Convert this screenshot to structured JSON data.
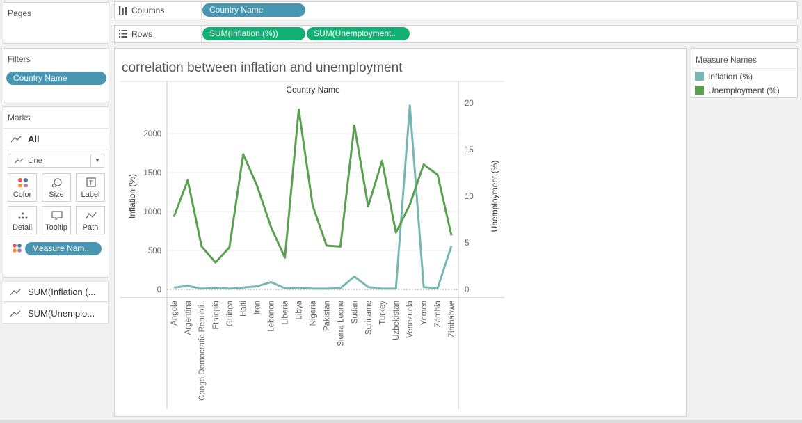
{
  "pages_shelf": {
    "title": "Pages"
  },
  "filters_shelf": {
    "title": "Filters",
    "pills": [
      "Country Name"
    ]
  },
  "marks_card": {
    "title": "Marks",
    "all_label": "All",
    "mark_type": "Line",
    "buttons": [
      {
        "label": "Color",
        "icon": "color-icon"
      },
      {
        "label": "Size",
        "icon": "size-icon"
      },
      {
        "label": "Label",
        "icon": "label-icon"
      },
      {
        "label": "Detail",
        "icon": "detail-icon"
      },
      {
        "label": "Tooltip",
        "icon": "tooltip-icon"
      },
      {
        "label": "Path",
        "icon": "path-icon"
      }
    ],
    "color_pill": "Measure Nam..",
    "measures": [
      "SUM(Inflation (...",
      "SUM(Unemplo..."
    ]
  },
  "columns_shelf": {
    "label": "Columns",
    "pills": [
      "Country Name"
    ]
  },
  "rows_shelf": {
    "label": "Rows",
    "pills": [
      "SUM(Inflation (%))",
      "SUM(Unemployment.."
    ]
  },
  "legend": {
    "title": "Measure Names",
    "items": [
      {
        "label": "Inflation (%)",
        "color": "#76b7b2"
      },
      {
        "label": "Unemployment (%)",
        "color": "#59a14f"
      }
    ]
  },
  "chart_data": {
    "type": "line",
    "title": "correlation between inflation and unemployment",
    "xlabel": "Country Name",
    "ylabel_left": "Inflation (%)",
    "ylabel_right": "Unemployment (%)",
    "ylim_left": [
      -100,
      2400
    ],
    "ylim_right": [
      -1,
      20.5
    ],
    "yticks_left": [
      0,
      500,
      1000,
      1500,
      2000
    ],
    "yticks_right": [
      0,
      5,
      10,
      15,
      20
    ],
    "categories": [
      "Angola",
      "Argentina",
      "Congo Democratic Republi..",
      "Ethiopia",
      "Guinea",
      "Haiti",
      "Iran",
      "Lebanon",
      "Liberia",
      "Libya",
      "Nigeria",
      "Pakistan",
      "Sierra Leone",
      "Sudan",
      "Suriname",
      "Turkey",
      "Uzbekistan",
      "Venezuela",
      "Yemen",
      "Zambia",
      "Zimbabwe"
    ],
    "series": [
      {
        "name": "Inflation (%)",
        "color": "#76b7b2",
        "values": [
          25,
          45,
          10,
          20,
          10,
          25,
          40,
          95,
          15,
          20,
          10,
          10,
          15,
          165,
          30,
          10,
          10,
          2360,
          30,
          15,
          560
        ]
      },
      {
        "name": "Unemployment (%)",
        "color": "#59a14f",
        "values": [
          7.8,
          11.7,
          4.6,
          2.9,
          4.5,
          14.5,
          11.1,
          6.7,
          3.4,
          19.3,
          9.0,
          4.7,
          4.6,
          17.6,
          8.9,
          13.8,
          6.1,
          9.1,
          13.4,
          12.3,
          5.8
        ]
      }
    ]
  }
}
